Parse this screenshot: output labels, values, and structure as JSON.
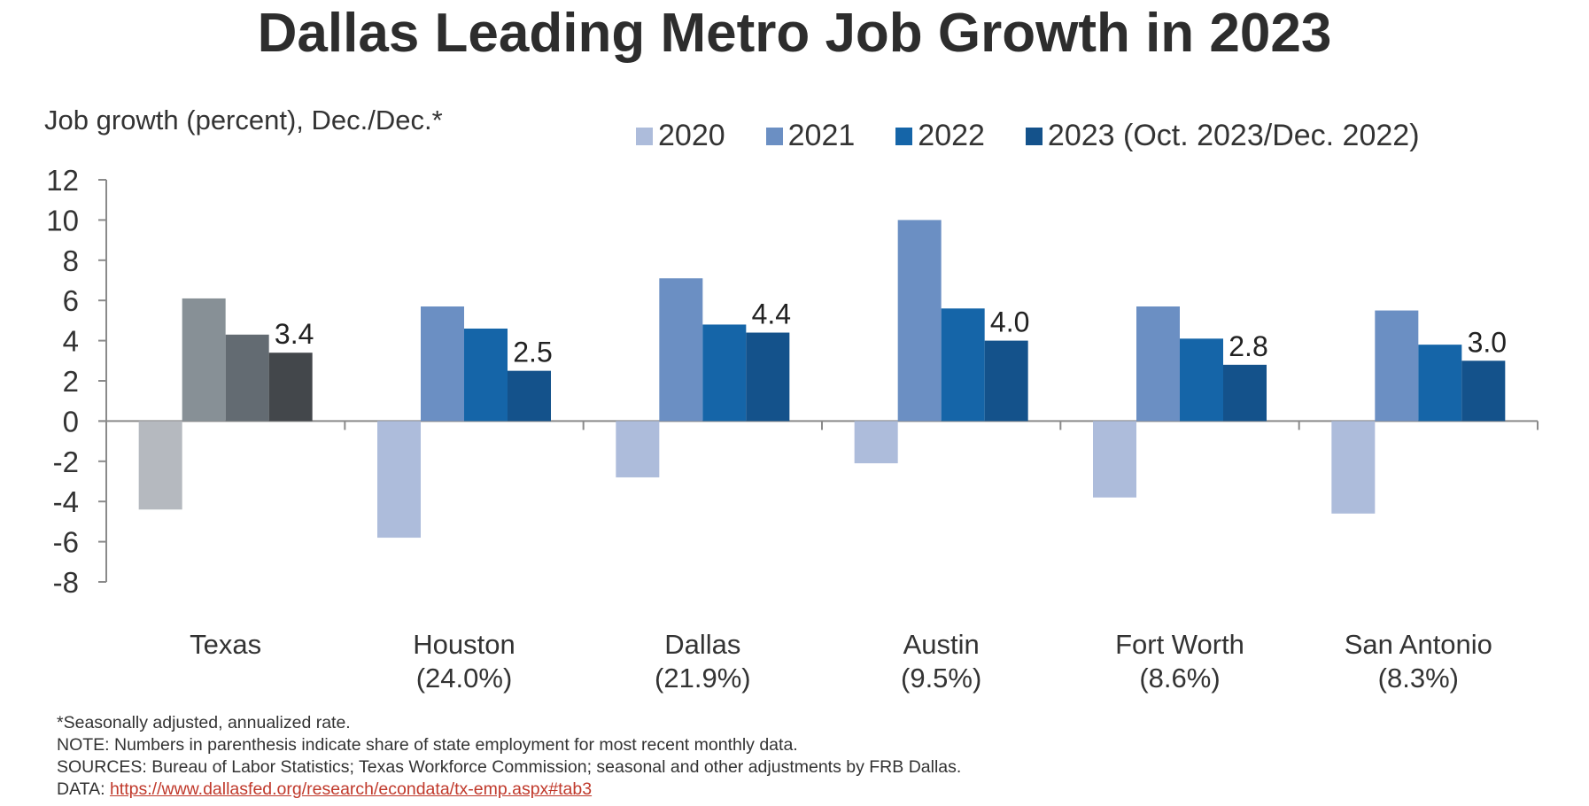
{
  "chart_data": {
    "type": "bar",
    "title": "Dallas Leading Metro Job Growth in 2023",
    "ylabel": "Job growth (percent), Dec./Dec.*",
    "xlabel": "",
    "ylim": [
      -8,
      12
    ],
    "yticks": [
      12,
      10,
      8,
      6,
      4,
      2,
      0,
      -2,
      -4,
      -6,
      -8
    ],
    "grid": false,
    "legend_position": "top",
    "categories": [
      {
        "name": "Texas",
        "share": ""
      },
      {
        "name": "Houston",
        "share": "(24.0%)"
      },
      {
        "name": "Dallas",
        "share": "(21.9%)"
      },
      {
        "name": "Austin",
        "share": "(9.5%)"
      },
      {
        "name": "Fort Worth",
        "share": "(8.6%)"
      },
      {
        "name": "San Antonio",
        "share": "(8.3%)"
      }
    ],
    "series": [
      {
        "name": "2020",
        "color": "#adbcdb",
        "texas_color": "#b5b9bf",
        "values": [
          -4.4,
          -5.8,
          -2.8,
          -2.1,
          -3.8,
          -4.6
        ]
      },
      {
        "name": "2021",
        "color": "#6b8fc3",
        "texas_color": "#879096",
        "values": [
          6.1,
          5.7,
          7.1,
          10.0,
          5.7,
          5.5
        ]
      },
      {
        "name": "2022",
        "color": "#1565a8",
        "texas_color": "#636b72",
        "values": [
          4.3,
          4.6,
          4.8,
          5.6,
          4.1,
          3.8
        ]
      },
      {
        "name": "2023 (Oct. 2023/Dec. 2022)",
        "color": "#14528b",
        "texas_color": "#43474b",
        "values": [
          3.4,
          2.5,
          4.4,
          4.0,
          2.8,
          3.0
        ]
      }
    ],
    "data_labels": [
      "3.4",
      "2.5",
      "4.4",
      "4.0",
      "2.8",
      "3.0"
    ]
  },
  "notes": {
    "footnote": "*Seasonally adjusted, annualized rate.",
    "note": "NOTE: Numbers in parenthesis indicate share of state employment for most recent monthly data.",
    "sources": "SOURCES: Bureau of Labor Statistics; Texas Workforce Commission; seasonal and other adjustments by FRB Dallas.",
    "data_prefix": "DATA: ",
    "data_link": "https://www.dallasfed.org/research/econdata/tx-emp.aspx#tab3"
  }
}
